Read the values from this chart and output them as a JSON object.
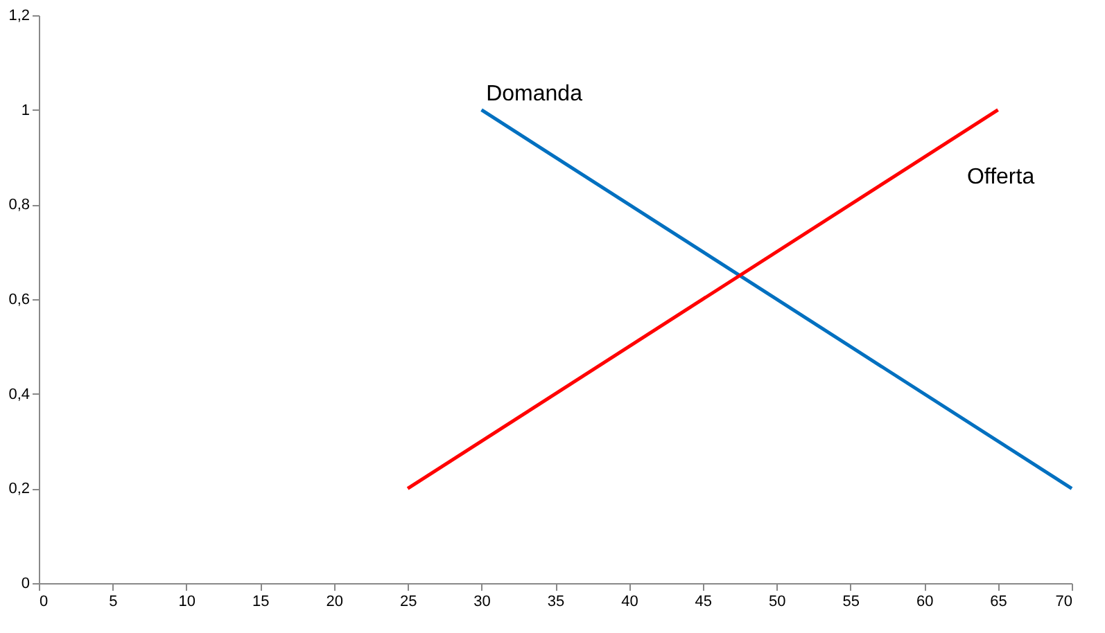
{
  "chart_data": {
    "type": "line",
    "series": [
      {
        "name": "Domanda",
        "color": "#0070c0",
        "x": [
          30,
          70
        ],
        "values": [
          1,
          0.2
        ]
      },
      {
        "name": "Offerta",
        "color": "#ff0000",
        "x": [
          25,
          65
        ],
        "values": [
          0.2,
          1
        ]
      }
    ],
    "xlim": [
      0,
      70
    ],
    "xticks": [
      0,
      5,
      10,
      15,
      20,
      25,
      30,
      35,
      40,
      45,
      50,
      55,
      60,
      65,
      70
    ],
    "ylim": [
      0,
      1.2
    ],
    "yticks": [
      {
        "value": 0,
        "label": "0"
      },
      {
        "value": 0.2,
        "label": "0,2"
      },
      {
        "value": 0.4,
        "label": "0,4"
      },
      {
        "value": 0.6,
        "label": "0,6"
      },
      {
        "value": 0.8,
        "label": "0,8"
      },
      {
        "value": 1,
        "label": "1"
      },
      {
        "value": 1.2,
        "label": "1,2"
      }
    ],
    "grid": false,
    "legend": false,
    "marker": "none",
    "line_style": "solid"
  }
}
